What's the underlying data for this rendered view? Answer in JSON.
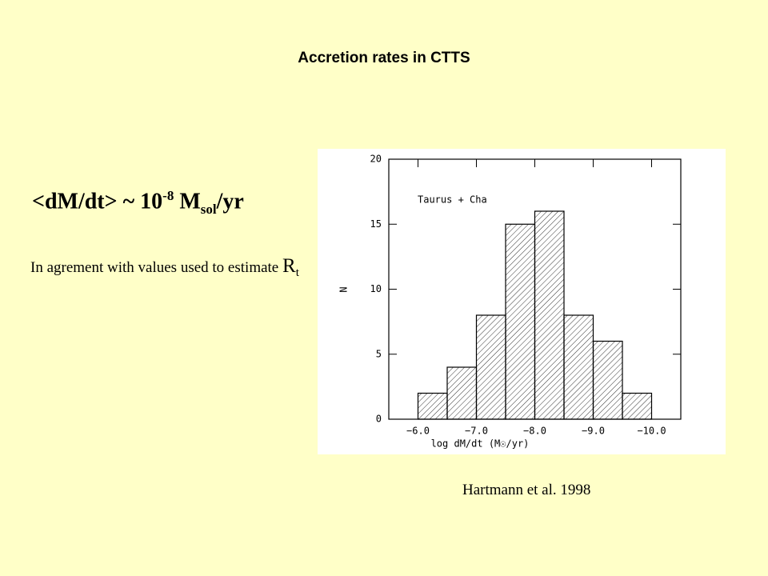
{
  "title": "Accretion rates in CTTS",
  "equation": {
    "base": "<dM/dt> ~ 10",
    "exponent": "-8",
    "unit": "M",
    "unit_sub": "sol",
    "unit_tail": "/yr"
  },
  "body": {
    "text": "In agrement with values used to estimate",
    "symbol": "R",
    "symbol_sub": "t"
  },
  "caption": "Hartmann et al. 1998",
  "chart_data": {
    "type": "histogram",
    "bins": [
      -6.0,
      -6.5,
      -7.0,
      -7.5,
      -8.0,
      -8.5,
      -9.0,
      -9.5,
      -10.0
    ],
    "values": [
      2,
      4,
      8,
      15,
      16,
      8,
      6,
      2
    ],
    "color": "#000000",
    "xlim": [
      -5.5,
      -10.5
    ],
    "xticks": [
      {
        "value": -6,
        "label": "−6.0"
      },
      {
        "value": -7,
        "label": "−7.0"
      },
      {
        "value": -8,
        "label": "−8.0"
      },
      {
        "value": -9,
        "label": "−9.0"
      },
      {
        "value": -10,
        "label": "−10.0"
      }
    ],
    "ylim": [
      0,
      20
    ],
    "yticks": [
      0,
      5,
      10,
      15,
      20
    ],
    "xlabel": "log dM/dt (M☉/yr)",
    "ylabel": "N",
    "annotation": "Taurus + Cha"
  }
}
